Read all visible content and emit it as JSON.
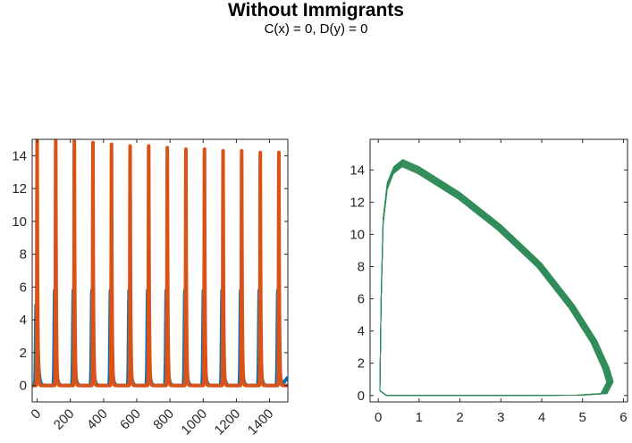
{
  "figure": {
    "title": "Without Immigrants",
    "subtitle": "C(x) = 0, D(y) = 0"
  },
  "colors": {
    "series_x": "#0072BD",
    "series_y": "#D95319",
    "phase": "#2E8B57",
    "axis": "#262626"
  },
  "chart_data": [
    {
      "type": "line",
      "title": "",
      "xlabel": "",
      "ylabel": "",
      "xlim": [
        -30,
        1510
      ],
      "ylim": [
        -1,
        15
      ],
      "xticks": [
        0,
        200,
        400,
        600,
        800,
        1000,
        1200,
        1400
      ],
      "yticks": [
        0,
        2,
        4,
        6,
        8,
        10,
        12,
        14
      ],
      "xtick_labels": [
        "0",
        "200",
        "400",
        "600",
        "800",
        "1000",
        "1200",
        "1400"
      ],
      "ytick_labels": [
        "0",
        "2",
        "4",
        "6",
        "8",
        "10",
        "12",
        "14"
      ],
      "x_tick_rotation_deg": 45,
      "grid": false,
      "period": 112,
      "series": [
        {
          "color": "#0072BD",
          "peak_times": [
            -6,
            0,
            106,
            218,
            330,
            442,
            554,
            666,
            778,
            890,
            1002,
            1114,
            1226,
            1338,
            1450
          ],
          "peak_values": [
            4.9,
            4.9,
            5.8,
            5.8,
            5.8,
            5.8,
            5.8,
            5.8,
            5.8,
            5.8,
            5.8,
            5.8,
            5.8,
            5.8,
            5.8
          ],
          "baseline": 0.0,
          "end_value": 0.5
        },
        {
          "color": "#D95319",
          "peak_times": [
            0,
            112,
            224,
            336,
            448,
            560,
            672,
            784,
            896,
            1008,
            1120,
            1232,
            1344,
            1456
          ],
          "peak_values": [
            15.2,
            15.0,
            14.9,
            14.8,
            14.7,
            14.6,
            14.6,
            14.5,
            14.4,
            14.4,
            14.3,
            14.3,
            14.2,
            14.2
          ],
          "baseline": -0.05
        }
      ]
    },
    {
      "type": "line",
      "title": "",
      "xlabel": "",
      "ylabel": "",
      "xlim": [
        -0.2,
        6.1
      ],
      "ylim": [
        -0.4,
        15.9
      ],
      "xticks": [
        0,
        1,
        2,
        3,
        4,
        5,
        6
      ],
      "yticks": [
        0,
        2,
        4,
        6,
        8,
        10,
        12,
        14
      ],
      "xtick_labels": [
        "0",
        "1",
        "2",
        "3",
        "4",
        "5",
        "6"
      ],
      "ytick_labels": [
        "0",
        "2",
        "4",
        "6",
        "8",
        "10",
        "12",
        "14"
      ],
      "grid": false,
      "orbit_count": 10,
      "orbit": {
        "top_path": [
          [
            0.04,
            0.3
          ],
          [
            0.07,
            6.0
          ],
          [
            0.12,
            11.0
          ],
          [
            0.22,
            13.2
          ],
          [
            0.38,
            14.2
          ],
          [
            0.6,
            14.65
          ],
          [
            1.0,
            14.2
          ],
          [
            2.0,
            12.6
          ],
          [
            3.0,
            10.6
          ],
          [
            4.0,
            8.2
          ],
          [
            4.8,
            5.6
          ],
          [
            5.35,
            3.4
          ],
          [
            5.65,
            1.7
          ],
          [
            5.75,
            0.85
          ],
          [
            5.6,
            0.12
          ],
          [
            5.0,
            0.02
          ],
          [
            3.0,
            0.0
          ],
          [
            1.0,
            0.0
          ],
          [
            0.2,
            0.0
          ],
          [
            0.04,
            0.3
          ]
        ],
        "spread_x": 0.16,
        "spread_y": 0.45
      }
    }
  ]
}
